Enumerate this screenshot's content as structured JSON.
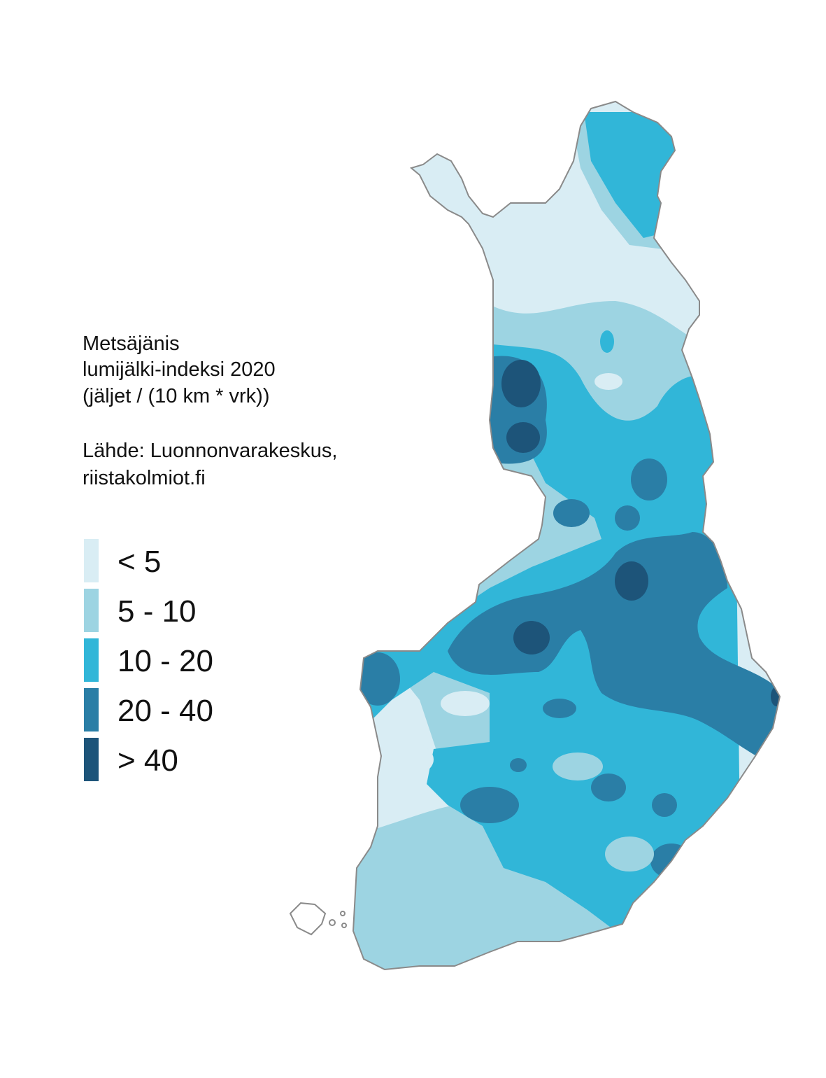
{
  "title": [
    "Metsäjänis",
    "lumijälki-indeksi 2020",
    "(jäljet / (10 km * vrk))"
  ],
  "source": [
    "Lähde: Luonnonvarakeskus,",
    "riistakolmiot.fi"
  ],
  "legend": [
    {
      "label": "< 5",
      "color": "#d9edf4"
    },
    {
      "label": "5 - 10",
      "color": "#9dd4e2"
    },
    {
      "label": "10 - 20",
      "color": "#31b6d8"
    },
    {
      "label": "20 - 40",
      "color": "#2a7ea6"
    },
    {
      "label": "> 40",
      "color": "#1d5479"
    }
  ]
}
